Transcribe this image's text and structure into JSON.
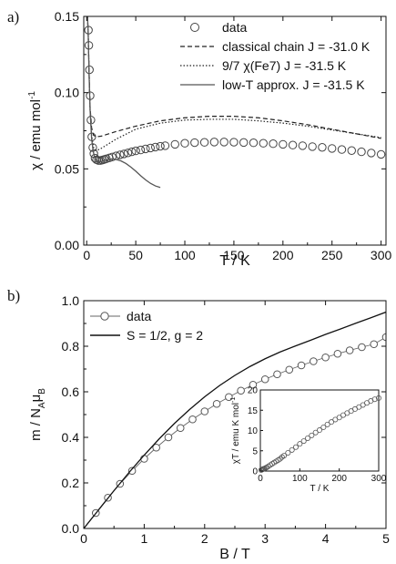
{
  "chart_data": [
    {
      "panel_label": "a)",
      "type": "scatter",
      "xlabel": "T / K",
      "ylabel": "χ / emu mol",
      "ylabel_sup": "-1",
      "xlim": [
        -3,
        305
      ],
      "ylim": [
        0.0,
        0.15
      ],
      "x_ticks": [
        "0",
        "50",
        "100",
        "150",
        "200",
        "250",
        "300"
      ],
      "y_ticks": [
        "0.00",
        "0.05",
        "0.10",
        "0.15"
      ],
      "legend_position": "top-right",
      "series": [
        {
          "name": "data",
          "style": "open-circle",
          "x": [
            1.8,
            2.2,
            2.8,
            3.5,
            4.3,
            5.2,
            6.2,
            7.3,
            8.5,
            10,
            12,
            14,
            16,
            18,
            20,
            23,
            26,
            30,
            34,
            38,
            42,
            46,
            50,
            55,
            60,
            65,
            70,
            75,
            80,
            90,
            100,
            110,
            120,
            130,
            140,
            150,
            160,
            170,
            180,
            190,
            200,
            210,
            220,
            230,
            240,
            250,
            260,
            270,
            280,
            290,
            300
          ],
          "y": [
            0.141,
            0.131,
            0.115,
            0.098,
            0.082,
            0.071,
            0.064,
            0.06,
            0.057,
            0.056,
            0.0555,
            0.0555,
            0.0558,
            0.0562,
            0.0566,
            0.0572,
            0.0578,
            0.0585,
            0.0592,
            0.0598,
            0.0605,
            0.0612,
            0.0618,
            0.0624,
            0.0631,
            0.0637,
            0.0643,
            0.0648,
            0.0652,
            0.0661,
            0.0668,
            0.0672,
            0.0674,
            0.0676,
            0.0676,
            0.0675,
            0.0673,
            0.0671,
            0.0668,
            0.0665,
            0.0661,
            0.0656,
            0.0652,
            0.0646,
            0.0641,
            0.0634,
            0.0627,
            0.062,
            0.0612,
            0.0604,
            0.0595
          ]
        },
        {
          "name": "classical chain J = -31.0 K",
          "style": "dashed",
          "x": [
            0.8,
            1.5,
            2.5,
            3.5,
            5,
            7,
            10,
            15,
            20,
            30,
            50,
            75,
            100,
            125,
            150,
            175,
            200,
            225,
            250,
            275,
            300
          ],
          "y": [
            0.15,
            0.14,
            0.112,
            0.09,
            0.077,
            0.072,
            0.071,
            0.0715,
            0.0725,
            0.0745,
            0.078,
            0.0815,
            0.0835,
            0.0845,
            0.0845,
            0.0835,
            0.0815,
            0.079,
            0.076,
            0.073,
            0.07
          ]
        },
        {
          "name": "9/7 χ(Fe7) J = -31.5 K",
          "style": "dotted",
          "x": [
            0.8,
            1.5,
            2.5,
            3.5,
            5,
            7,
            10,
            15,
            20,
            30,
            50,
            75,
            100,
            125,
            150,
            175,
            200,
            225,
            250,
            275,
            300
          ],
          "y": [
            0.15,
            0.14,
            0.112,
            0.088,
            0.072,
            0.064,
            0.062,
            0.0635,
            0.0655,
            0.0695,
            0.076,
            0.08,
            0.082,
            0.0825,
            0.0825,
            0.0815,
            0.08,
            0.078,
            0.0755,
            0.073,
            0.0705
          ]
        },
        {
          "name": "low-T approx. J = -31.5 K",
          "style": "solid",
          "x": [
            0.8,
            1.5,
            2.5,
            3.5,
            5,
            6.5,
            8,
            10,
            12,
            15,
            18,
            22,
            26,
            30,
            35,
            40,
            45,
            50,
            55,
            60,
            65,
            70,
            75
          ],
          "y": [
            0.15,
            0.14,
            0.11,
            0.088,
            0.07,
            0.062,
            0.0575,
            0.055,
            0.0545,
            0.0548,
            0.0555,
            0.0562,
            0.0565,
            0.0562,
            0.0552,
            0.0535,
            0.0512,
            0.0485,
            0.0455,
            0.0428,
            0.0405,
            0.0388,
            0.0378
          ]
        }
      ]
    },
    {
      "panel_label": "b)",
      "type": "line",
      "xlabel": "B / T",
      "ylabel": "m / N",
      "ylabel_sub1": "A",
      "ylabel_mu": "μ",
      "ylabel_sub2": "B",
      "xlim": [
        0,
        5
      ],
      "ylim": [
        0.0,
        1.0
      ],
      "x_ticks": [
        "0",
        "1",
        "2",
        "3",
        "4",
        "5"
      ],
      "y_ticks": [
        "0.0",
        "0.2",
        "0.4",
        "0.6",
        "0.8",
        "1.0"
      ],
      "legend_position": "top-left",
      "series": [
        {
          "name": "data",
          "style": "line-with-open-circles",
          "x": [
            0.2,
            0.4,
            0.6,
            0.8,
            1.0,
            1.2,
            1.4,
            1.6,
            1.8,
            2.0,
            2.2,
            2.4,
            2.6,
            2.8,
            3.0,
            3.2,
            3.4,
            3.6,
            3.8,
            4.0,
            4.2,
            4.4,
            4.6,
            4.8,
            5.0
          ],
          "y": [
            0.068,
            0.135,
            0.196,
            0.253,
            0.306,
            0.355,
            0.4,
            0.441,
            0.479,
            0.514,
            0.547,
            0.577,
            0.605,
            0.631,
            0.655,
            0.677,
            0.697,
            0.716,
            0.734,
            0.751,
            0.767,
            0.782,
            0.796,
            0.809,
            0.84
          ]
        },
        {
          "name": "S = 1/2, g = 2",
          "style": "solid",
          "x": [
            0,
            0.25,
            0.5,
            0.75,
            1.0,
            1.25,
            1.5,
            1.75,
            2.0,
            2.25,
            2.5,
            2.75,
            3.0,
            3.25,
            3.5,
            3.75,
            4.0,
            4.25,
            4.5,
            4.75,
            5.0
          ],
          "y": [
            0.0,
            0.083,
            0.166,
            0.246,
            0.322,
            0.394,
            0.461,
            0.522,
            0.578,
            0.628,
            0.672,
            0.711,
            0.745,
            0.775,
            0.801,
            0.826,
            0.852,
            0.876,
            0.901,
            0.925,
            0.95
          ]
        }
      ],
      "inset": {
        "type": "scatter",
        "xlabel": "T / K",
        "ylabel": "χT / emu K mol",
        "ylabel_sup": "-1",
        "xlim": [
          0,
          300
        ],
        "ylim": [
          0,
          20
        ],
        "x_ticks": [
          "0",
          "100",
          "200",
          "300"
        ],
        "y_ticks": [
          "0",
          "5",
          "10",
          "15",
          "20"
        ],
        "series": [
          {
            "name": "",
            "style": "open-circle",
            "x": [
              2,
              4,
              6,
              8,
              10,
              13,
              16,
              20,
              25,
              30,
              35,
              40,
              45,
              50,
              55,
              60,
              70,
              80,
              90,
              100,
              110,
              120,
              130,
              140,
              150,
              160,
              170,
              180,
              190,
              200,
              210,
              220,
              230,
              240,
              250,
              260,
              270,
              280,
              290,
              300
            ],
            "y": [
              0.25,
              0.35,
              0.45,
              0.55,
              0.6,
              0.75,
              0.9,
              1.15,
              1.5,
              1.8,
              2.1,
              2.4,
              2.7,
              3.0,
              3.45,
              3.8,
              4.5,
              5.2,
              5.9,
              6.7,
              7.4,
              8.1,
              8.8,
              9.5,
              10.1,
              10.8,
              11.5,
              12.1,
              12.7,
              13.2,
              13.8,
              14.3,
              14.8,
              15.3,
              15.8,
              16.3,
              16.8,
              17.3,
              17.7,
              18.0
            ]
          }
        ]
      }
    }
  ]
}
